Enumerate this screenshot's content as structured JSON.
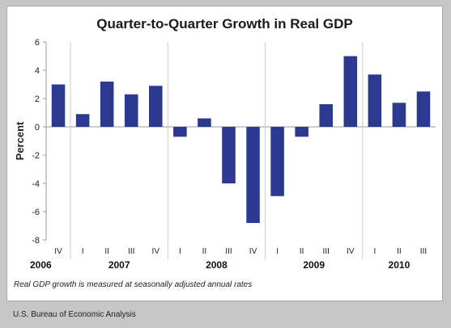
{
  "chart_data": {
    "type": "bar",
    "title": "Quarter-to-Quarter Growth in Real GDP",
    "ylabel": "Percent",
    "xlabel": "",
    "ylim": [
      -8,
      6
    ],
    "yticks": [
      -8,
      -6,
      -4,
      -2,
      0,
      2,
      4,
      6
    ],
    "grid": false,
    "legend": "none",
    "bar_color": "#2b3990",
    "categories": [
      "IV",
      "I",
      "II",
      "III",
      "IV",
      "I",
      "II",
      "III",
      "IV",
      "I",
      "II",
      "III",
      "IV",
      "I",
      "II",
      "III"
    ],
    "values": [
      3.0,
      0.9,
      3.2,
      2.3,
      2.9,
      -0.7,
      0.6,
      -4.0,
      -6.8,
      -4.9,
      -0.7,
      1.6,
      5.0,
      3.7,
      1.7,
      2.5
    ],
    "years": [
      {
        "label": "2006",
        "start": 0,
        "end": 0
      },
      {
        "label": "2007",
        "start": 1,
        "end": 4
      },
      {
        "label": "2008",
        "start": 5,
        "end": 8
      },
      {
        "label": "2009",
        "start": 9,
        "end": 12
      },
      {
        "label": "2010",
        "start": 13,
        "end": 15
      }
    ],
    "note": "Real GDP growth is measured at seasonally adjusted annual rates"
  },
  "footer": {
    "source": "U.S. Bureau of Economic Analysis"
  }
}
